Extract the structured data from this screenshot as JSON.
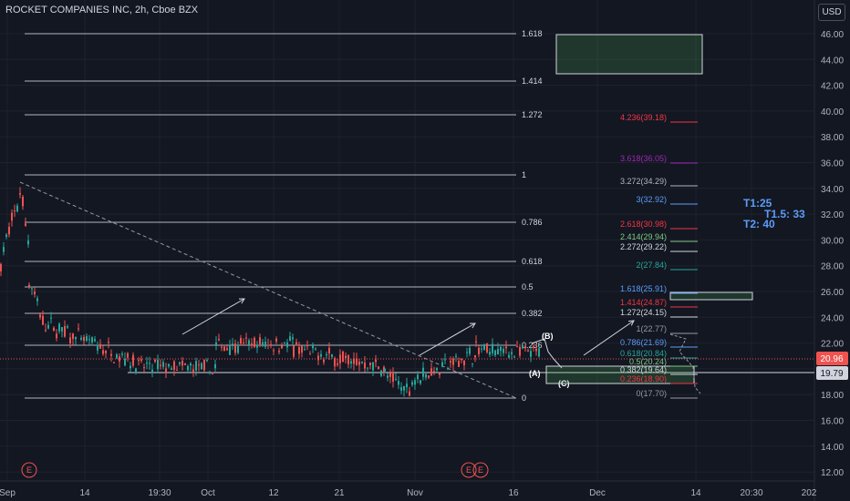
{
  "header": {
    "title": "ROCKET COMPANIES INC, 2h, Cboe BZX"
  },
  "currency_button": "USD",
  "price_axis": {
    "ticks": [
      "46.00",
      "44.00",
      "42.00",
      "40.00",
      "38.00",
      "36.00",
      "34.00",
      "32.00",
      "30.00",
      "28.00",
      "26.00",
      "24.00",
      "22.00",
      "20.00",
      "18.00",
      "16.00",
      "14.00",
      "12.00"
    ],
    "last_price": "20.96",
    "marker_price": "19.79"
  },
  "time_axis": {
    "ticks": [
      "Sep",
      "14",
      "19:30",
      "Oct",
      "12",
      "21",
      "Nov",
      "16",
      "Dec",
      "14",
      "20:30",
      "202"
    ]
  },
  "fib_retracement": {
    "levels": [
      "1.618",
      "1.414",
      "1.272",
      "1",
      "0.786",
      "0.618",
      "0.5",
      "0.382",
      "0.236",
      "0"
    ]
  },
  "fib_extension": {
    "levels": [
      {
        "text": "4.236(39.18)",
        "color": "#f23645"
      },
      {
        "text": "3.618(36.05)",
        "color": "#9c27b0"
      },
      {
        "text": "3.272(34.29)",
        "color": "#b2b5be"
      },
      {
        "text": "3(32.92)",
        "color": "#5b9cf6"
      },
      {
        "text": "2.618(30.98)",
        "color": "#f23645"
      },
      {
        "text": "2.414(29.94)",
        "color": "#81c784"
      },
      {
        "text": "2.272(29.22)",
        "color": "#d1d4dc"
      },
      {
        "text": "2(27.84)",
        "color": "#26a69a"
      },
      {
        "text": "1.618(25.91)",
        "color": "#5b9cf6"
      },
      {
        "text": "1.414(24.87)",
        "color": "#f23645"
      },
      {
        "text": "1.272(24.15)",
        "color": "#d1d4dc"
      },
      {
        "text": "1(22.77)",
        "color": "#9598a1"
      },
      {
        "text": "0.786(21.69)",
        "color": "#5b9cf6"
      },
      {
        "text": "0.618(20.84)",
        "color": "#26a69a"
      },
      {
        "text": "0.5(20.24)",
        "color": "#81c784"
      },
      {
        "text": "0.382(19.64)",
        "color": "#d1d4dc"
      },
      {
        "text": "0.236(18.90)",
        "color": "#f23645"
      },
      {
        "text": "0(17.70)",
        "color": "#9598a1"
      }
    ]
  },
  "targets": {
    "t1": "T1:25",
    "t15": "T1.5: 33",
    "t2": "T2: 40"
  },
  "wave_labels": {
    "a": "(A)",
    "b": "(B)",
    "c": "(C)"
  },
  "event_markers": [
    "E",
    "E",
    "E"
  ],
  "colors": {
    "background": "#131722",
    "up": "#26a69a",
    "down": "#ef5350",
    "grid": "#1e222d",
    "target": "#5b9cf6"
  }
}
